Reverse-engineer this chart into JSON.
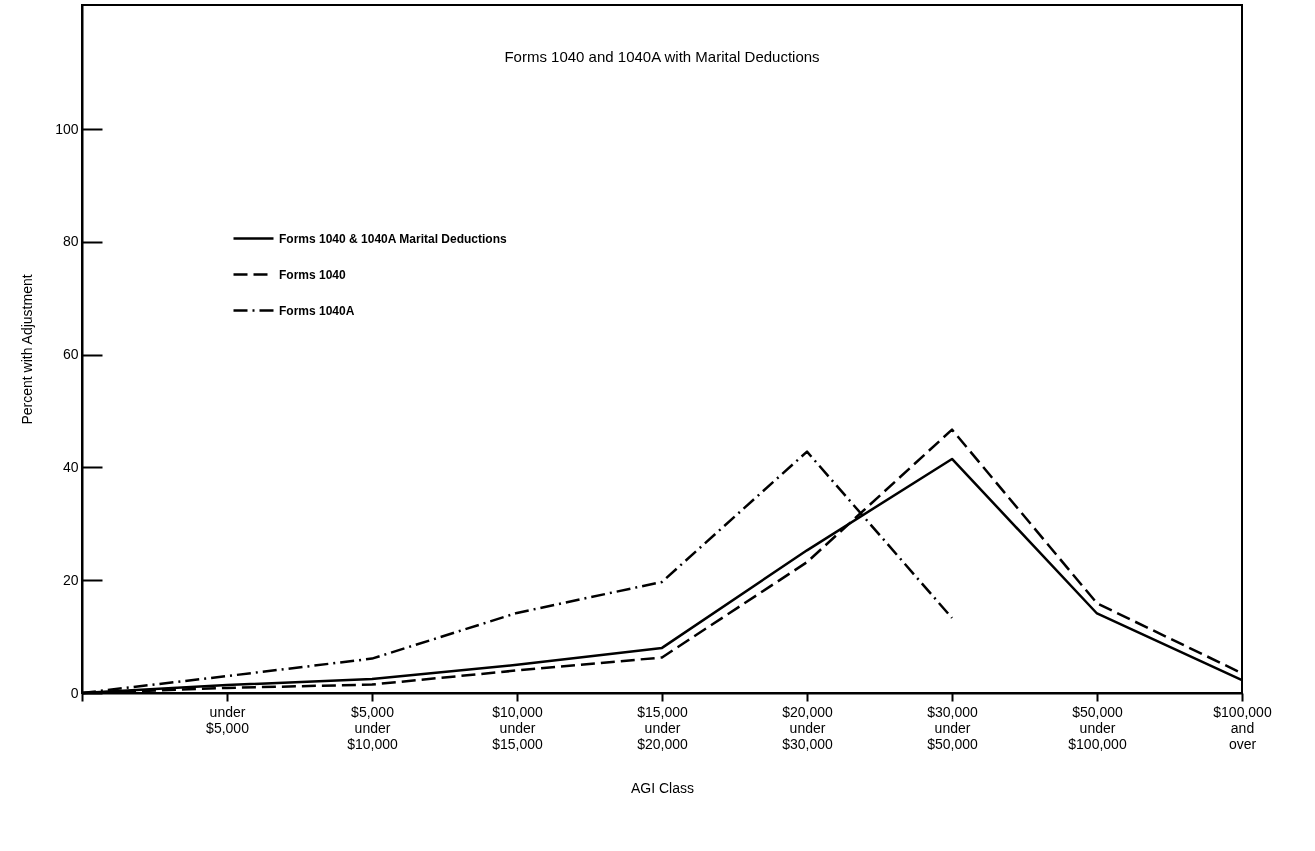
{
  "chart_data": {
    "type": "line",
    "title": "Forms 1040 and 1040A with Marital Deductions",
    "xlabel": "AGI Class",
    "ylabel": "Percent with Adjustment",
    "categories": [
      null,
      "under\n$5,000",
      "$5,000\nunder\n$10,000",
      "$10,000\nunder\n$15,000",
      "$15,000\nunder\n$20,000",
      "$20,000\nunder\n$30,000",
      "$30,000\nunder\n$50,000",
      "$50,000\nunder\n$100,000",
      "$100,000\nand\nover"
    ],
    "series": [
      {
        "name": "Forms 1040 & 1040A Marital Deductions",
        "color": "#000000",
        "line_style": "solid",
        "values": [
          0,
          1.4,
          2.5,
          5,
          8,
          25.3,
          41.5,
          14.1,
          2.3
        ]
      },
      {
        "name": "Forms 1040",
        "color": "#000000",
        "line_style": "dashed",
        "values": [
          0,
          0.9,
          1.5,
          4,
          6.3,
          23.2,
          46.7,
          15.9,
          3.5
        ]
      },
      {
        "name": "Forms 1040A",
        "color": "#000000",
        "line_style": "dashdot",
        "values": [
          0,
          3,
          6.1,
          14.2,
          19.7,
          42.8,
          13.3,
          null,
          null
        ]
      }
    ],
    "ylim": [
      0,
      122
    ],
    "yticks": [
      0,
      20,
      40,
      60,
      80,
      100
    ],
    "grid": false,
    "legend": "top left",
    "marker": "none"
  }
}
